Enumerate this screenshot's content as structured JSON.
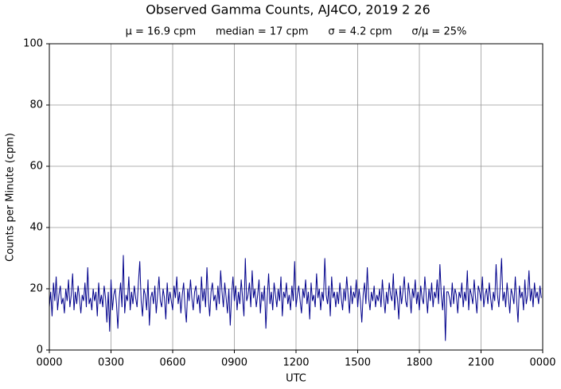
{
  "chart_data": {
    "type": "line",
    "title": "Observed Gamma Counts, AJ4CO, 2019 2 26",
    "subtitle": "μ = 16.9 cpm      median = 17 cpm      σ = 4.2 cpm      σ/μ = 25%",
    "xlabel": "UTC",
    "ylabel": "Counts per Minute (cpm)",
    "xlim": [
      0,
      1440
    ],
    "ylim": [
      0,
      100
    ],
    "xticks": [
      {
        "value": 0,
        "label": "0000"
      },
      {
        "value": 180,
        "label": "0300"
      },
      {
        "value": 360,
        "label": "0600"
      },
      {
        "value": 540,
        "label": "0900"
      },
      {
        "value": 720,
        "label": "1200"
      },
      {
        "value": 900,
        "label": "1500"
      },
      {
        "value": 1080,
        "label": "1800"
      },
      {
        "value": 1260,
        "label": "2100"
      },
      {
        "value": 1440,
        "label": "0000"
      }
    ],
    "yticks": [
      0,
      20,
      40,
      60,
      80,
      100
    ],
    "grid": true,
    "series": [
      {
        "color": "#00008b",
        "x": [
          0,
          4,
          8,
          12,
          16,
          20,
          24,
          28,
          32,
          36,
          40,
          44,
          48,
          52,
          56,
          60,
          64,
          68,
          72,
          76,
          80,
          84,
          88,
          92,
          96,
          100,
          104,
          108,
          112,
          116,
          120,
          124,
          128,
          132,
          136,
          140,
          144,
          148,
          152,
          156,
          160,
          164,
          168,
          172,
          176,
          180,
          184,
          188,
          192,
          196,
          200,
          204,
          208,
          212,
          216,
          220,
          224,
          228,
          232,
          236,
          240,
          244,
          248,
          252,
          256,
          260,
          264,
          268,
          272,
          276,
          280,
          284,
          288,
          292,
          296,
          300,
          304,
          308,
          312,
          316,
          320,
          324,
          328,
          332,
          336,
          340,
          344,
          348,
          352,
          356,
          360,
          364,
          368,
          372,
          376,
          380,
          384,
          388,
          392,
          396,
          400,
          404,
          408,
          412,
          416,
          420,
          424,
          428,
          432,
          436,
          440,
          444,
          448,
          452,
          456,
          460,
          464,
          468,
          472,
          476,
          480,
          484,
          488,
          492,
          496,
          500,
          504,
          508,
          512,
          516,
          520,
          524,
          528,
          532,
          536,
          540,
          544,
          548,
          552,
          556,
          560,
          564,
          568,
          572,
          576,
          580,
          584,
          588,
          592,
          596,
          600,
          604,
          608,
          612,
          616,
          620,
          624,
          628,
          632,
          636,
          640,
          644,
          648,
          652,
          656,
          660,
          664,
          668,
          672,
          676,
          680,
          684,
          688,
          692,
          696,
          700,
          704,
          708,
          712,
          716,
          720,
          724,
          728,
          732,
          736,
          740,
          744,
          748,
          752,
          756,
          760,
          764,
          768,
          772,
          776,
          780,
          784,
          788,
          792,
          796,
          800,
          804,
          808,
          812,
          816,
          820,
          824,
          828,
          832,
          836,
          840,
          844,
          848,
          852,
          856,
          860,
          864,
          868,
          872,
          876,
          880,
          884,
          888,
          892,
          896,
          900,
          904,
          908,
          912,
          916,
          920,
          924,
          928,
          932,
          936,
          940,
          944,
          948,
          952,
          956,
          960,
          964,
          968,
          972,
          976,
          980,
          984,
          988,
          992,
          996,
          1000,
          1004,
          1008,
          1012,
          1016,
          1020,
          1024,
          1028,
          1032,
          1036,
          1040,
          1044,
          1048,
          1052,
          1056,
          1060,
          1064,
          1068,
          1072,
          1076,
          1080,
          1084,
          1088,
          1092,
          1096,
          1100,
          1104,
          1108,
          1112,
          1116,
          1120,
          1124,
          1128,
          1132,
          1136,
          1140,
          1144,
          1148,
          1152,
          1156,
          1160,
          1164,
          1168,
          1172,
          1176,
          1180,
          1184,
          1188,
          1192,
          1196,
          1200,
          1204,
          1208,
          1212,
          1216,
          1220,
          1224,
          1228,
          1232,
          1236,
          1240,
          1244,
          1248,
          1252,
          1256,
          1260,
          1264,
          1268,
          1272,
          1276,
          1280,
          1284,
          1288,
          1292,
          1296,
          1300,
          1304,
          1308,
          1312,
          1316,
          1320,
          1324,
          1328,
          1332,
          1336,
          1340,
          1344,
          1348,
          1352,
          1356,
          1360,
          1364,
          1368,
          1372,
          1376,
          1380,
          1384,
          1388,
          1392,
          1396,
          1400,
          1404,
          1408,
          1412,
          1416,
          1420,
          1424,
          1428,
          1432,
          1436
        ],
        "values": [
          14,
          19,
          11,
          22,
          16,
          24,
          13,
          18,
          21,
          15,
          17,
          12,
          20,
          16,
          23,
          14,
          18,
          25,
          13,
          19,
          15,
          21,
          17,
          12,
          18,
          16,
          22,
          14,
          27,
          15,
          17,
          13,
          20,
          16,
          19,
          11,
          22,
          15,
          18,
          14,
          21,
          17,
          9,
          19,
          6,
          23,
          13,
          18,
          20,
          15,
          7,
          17,
          22,
          14,
          31,
          12,
          18,
          16,
          24,
          13,
          19,
          15,
          21,
          17,
          14,
          22,
          29,
          16,
          11,
          20,
          18,
          13,
          23,
          8,
          17,
          19,
          15,
          21,
          12,
          18,
          24,
          16,
          14,
          20,
          17,
          10,
          22,
          15,
          19,
          16,
          13,
          21,
          17,
          24,
          15,
          19,
          12,
          18,
          22,
          14,
          9,
          20,
          16,
          23,
          17,
          13,
          19,
          21,
          15,
          18,
          12,
          24,
          16,
          20,
          14,
          27,
          17,
          11,
          19,
          22,
          16,
          18,
          13,
          21,
          15,
          26,
          19,
          14,
          22,
          17,
          12,
          20,
          8,
          18,
          24,
          16,
          21,
          13,
          19,
          15,
          23,
          17,
          11,
          30,
          16,
          18,
          22,
          14,
          26,
          17,
          20,
          14,
          18,
          23,
          12,
          19,
          16,
          21,
          7,
          17,
          25,
          15,
          19,
          13,
          22,
          18,
          14,
          20,
          16,
          24,
          11,
          19,
          17,
          22,
          15,
          18,
          13,
          21,
          16,
          29,
          14,
          18,
          21,
          16,
          12,
          20,
          17,
          23,
          15,
          19,
          10,
          22,
          16,
          18,
          14,
          25,
          17,
          20,
          13,
          19,
          16,
          30,
          18,
          15,
          21,
          11,
          24,
          17,
          19,
          14,
          19,
          15,
          22,
          17,
          13,
          20,
          16,
          24,
          18,
          12,
          21,
          15,
          19,
          17,
          23,
          14,
          20,
          16,
          9,
          18,
          22,
          15,
          27,
          17,
          13,
          19,
          16,
          21,
          14,
          18,
          16,
          20,
          14,
          23,
          17,
          12,
          19,
          15,
          22,
          18,
          16,
          25,
          13,
          20,
          17,
          10,
          21,
          15,
          19,
          24,
          16,
          14,
          22,
          18,
          12,
          20,
          17,
          23,
          15,
          19,
          13,
          21,
          17,
          15,
          24,
          18,
          12,
          20,
          16,
          22,
          14,
          19,
          17,
          23,
          15,
          28,
          18,
          13,
          21,
          3,
          19,
          19,
          17,
          14,
          22,
          15,
          20,
          18,
          12,
          19,
          17,
          22,
          14,
          19,
          16,
          26,
          13,
          20,
          18,
          15,
          23,
          17,
          12,
          21,
          19,
          16,
          24,
          14,
          18,
          20,
          15,
          22,
          17,
          13,
          19,
          16,
          28,
          18,
          14,
          21,
          30,
          16,
          19,
          14,
          22,
          17,
          12,
          20,
          18,
          15,
          24,
          16,
          9,
          21,
          17,
          19,
          13,
          23,
          15,
          18,
          26,
          16,
          20,
          14,
          22,
          17,
          19,
          15,
          21,
          17
        ]
      }
    ]
  }
}
